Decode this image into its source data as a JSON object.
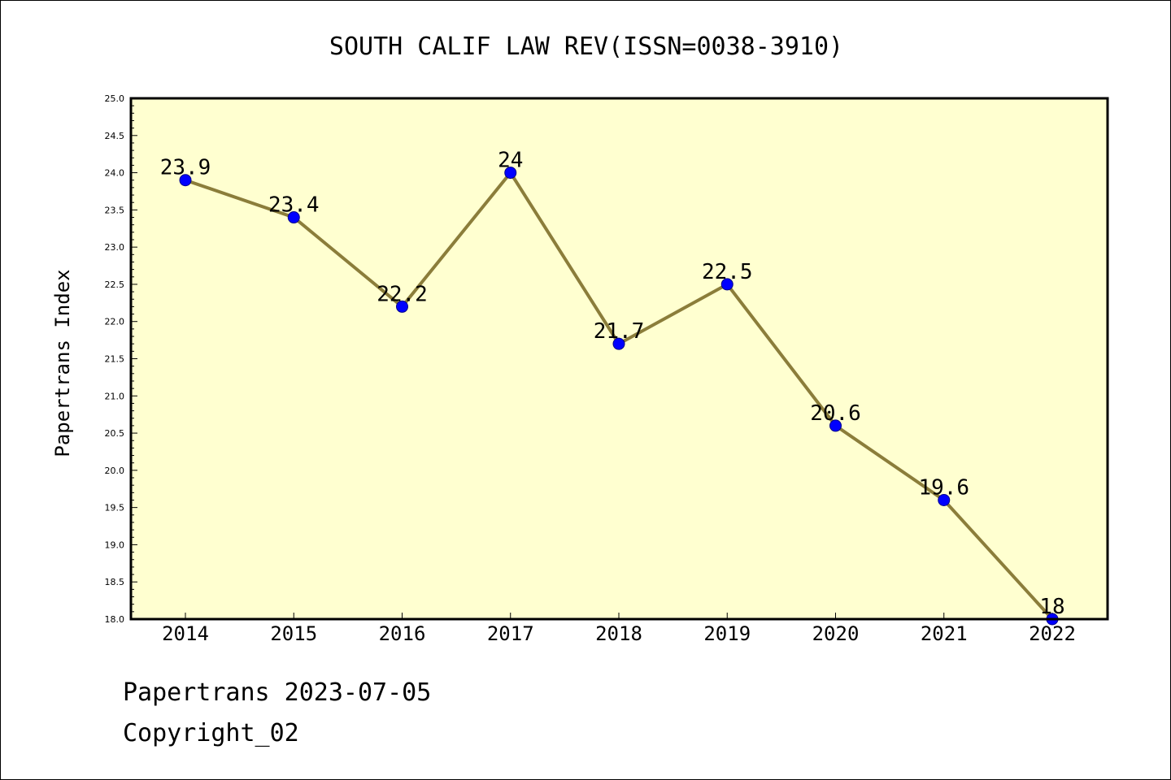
{
  "chart_data": {
    "type": "line",
    "title": "SOUTH CALIF LAW REV(ISSN=0038-3910)",
    "ylabel": "Papertrans Index",
    "xlabel": "",
    "categories": [
      "2014",
      "2015",
      "2016",
      "2017",
      "2018",
      "2019",
      "2020",
      "2021",
      "2022"
    ],
    "series": [
      {
        "values": [
          23.9,
          23.4,
          22.2,
          24.0,
          21.7,
          22.5,
          20.6,
          19.6,
          18.0
        ],
        "data_labels": [
          "23.9",
          "23.4",
          "22.2",
          "24",
          "21.7",
          "22.5",
          "20.6",
          "19.6",
          "18"
        ]
      }
    ],
    "ylim": [
      18.0,
      25.0
    ],
    "yticks": [
      "18.0",
      "18.5",
      "19.0",
      "19.5",
      "20.0",
      "20.5",
      "21.0",
      "21.5",
      "22.0",
      "22.5",
      "23.0",
      "23.5",
      "24.0",
      "24.5",
      "25.0"
    ],
    "grid": false,
    "colors": {
      "plot_background": "#ffffd0",
      "line": "#8b7d3a",
      "marker": "#0000ff"
    }
  },
  "footer": {
    "line1": "Papertrans 2023-07-05",
    "line2": "Copyright_02"
  }
}
